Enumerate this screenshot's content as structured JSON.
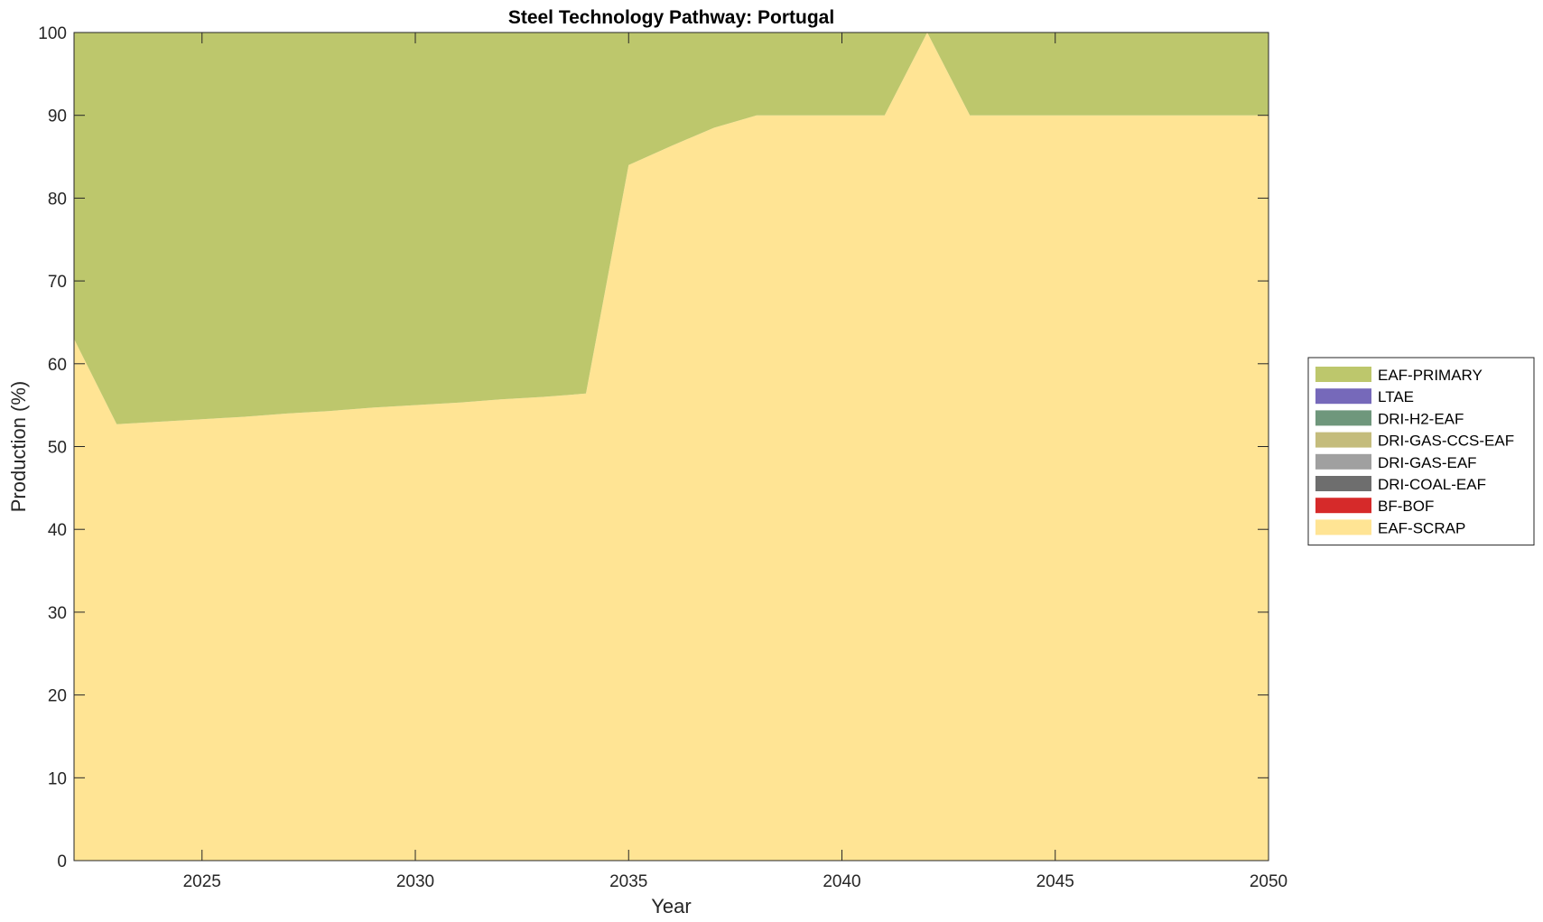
{
  "chart_data": {
    "type": "area",
    "stacked": true,
    "title": "Steel Technology Pathway: Portugal",
    "xlabel": "Year",
    "ylabel": "Production (%)",
    "xlim": [
      2022,
      2050
    ],
    "ylim": [
      0,
      100
    ],
    "xticks": [
      2025,
      2030,
      2035,
      2040,
      2045,
      2050
    ],
    "yticks": [
      0,
      10,
      20,
      30,
      40,
      50,
      60,
      70,
      80,
      90,
      100
    ],
    "grid": false,
    "legend_position": "right",
    "x": [
      2022,
      2023,
      2024,
      2025,
      2026,
      2027,
      2028,
      2029,
      2030,
      2031,
      2032,
      2033,
      2034,
      2035,
      2036,
      2037,
      2038,
      2039,
      2040,
      2041,
      2042,
      2043,
      2044,
      2045,
      2046,
      2047,
      2048,
      2049,
      2050
    ],
    "series": [
      {
        "name": "EAF-SCRAP",
        "color": "#FFE494",
        "values": [
          63,
          52.7,
          53,
          53.3,
          53.6,
          54,
          54.3,
          54.7,
          55,
          55.3,
          55.7,
          56,
          56.4,
          84,
          86.3,
          88.5,
          90,
          90,
          90,
          90,
          100,
          90,
          90,
          90,
          90,
          90,
          90,
          90,
          90
        ]
      },
      {
        "name": "BF-BOF",
        "color": "#D62A2A",
        "values": [
          0,
          0,
          0,
          0,
          0,
          0,
          0,
          0,
          0,
          0,
          0,
          0,
          0,
          0,
          0,
          0,
          0,
          0,
          0,
          0,
          0,
          0,
          0,
          0,
          0,
          0,
          0,
          0,
          0
        ]
      },
      {
        "name": "DRI-COAL-EAF",
        "color": "#6E6E6E",
        "values": [
          0,
          0,
          0,
          0,
          0,
          0,
          0,
          0,
          0,
          0,
          0,
          0,
          0,
          0,
          0,
          0,
          0,
          0,
          0,
          0,
          0,
          0,
          0,
          0,
          0,
          0,
          0,
          0,
          0
        ]
      },
      {
        "name": "DRI-GAS-EAF",
        "color": "#A0A0A0",
        "values": [
          0,
          0,
          0,
          0,
          0,
          0,
          0,
          0,
          0,
          0,
          0,
          0,
          0,
          0,
          0,
          0,
          0,
          0,
          0,
          0,
          0,
          0,
          0,
          0,
          0,
          0,
          0,
          0,
          0
        ]
      },
      {
        "name": "DRI-GAS-CCS-EAF",
        "color": "#C4BC7C",
        "values": [
          0,
          0,
          0,
          0,
          0,
          0,
          0,
          0,
          0,
          0,
          0,
          0,
          0,
          0,
          0,
          0,
          0,
          0,
          0,
          0,
          0,
          0,
          0,
          0,
          0,
          0,
          0,
          0,
          0
        ]
      },
      {
        "name": "DRI-H2-EAF",
        "color": "#6F977C",
        "values": [
          0,
          0,
          0,
          0,
          0,
          0,
          0,
          0,
          0,
          0,
          0,
          0,
          0,
          0,
          0,
          0,
          0,
          0,
          0,
          0,
          0,
          0,
          0,
          0,
          0,
          0,
          0,
          0,
          0
        ]
      },
      {
        "name": "LTAE",
        "color": "#7669BA",
        "values": [
          0,
          0,
          0,
          0,
          0,
          0,
          0,
          0,
          0,
          0,
          0,
          0,
          0,
          0,
          0,
          0,
          0,
          0,
          0,
          0,
          0,
          0,
          0,
          0,
          0,
          0,
          0,
          0,
          0
        ]
      },
      {
        "name": "EAF-PRIMARY",
        "color": "#BDC76C",
        "values": [
          37,
          47.3,
          47,
          46.7,
          46.4,
          46,
          45.7,
          45.3,
          45,
          44.7,
          44.3,
          44,
          43.6,
          16,
          13.7,
          11.5,
          10,
          10,
          10,
          10,
          0,
          10,
          10,
          10,
          10,
          10,
          10,
          10,
          10
        ]
      }
    ],
    "legend_order": [
      "EAF-PRIMARY",
      "LTAE",
      "DRI-H2-EAF",
      "DRI-GAS-CCS-EAF",
      "DRI-GAS-EAF",
      "DRI-COAL-EAF",
      "BF-BOF",
      "EAF-SCRAP"
    ]
  }
}
